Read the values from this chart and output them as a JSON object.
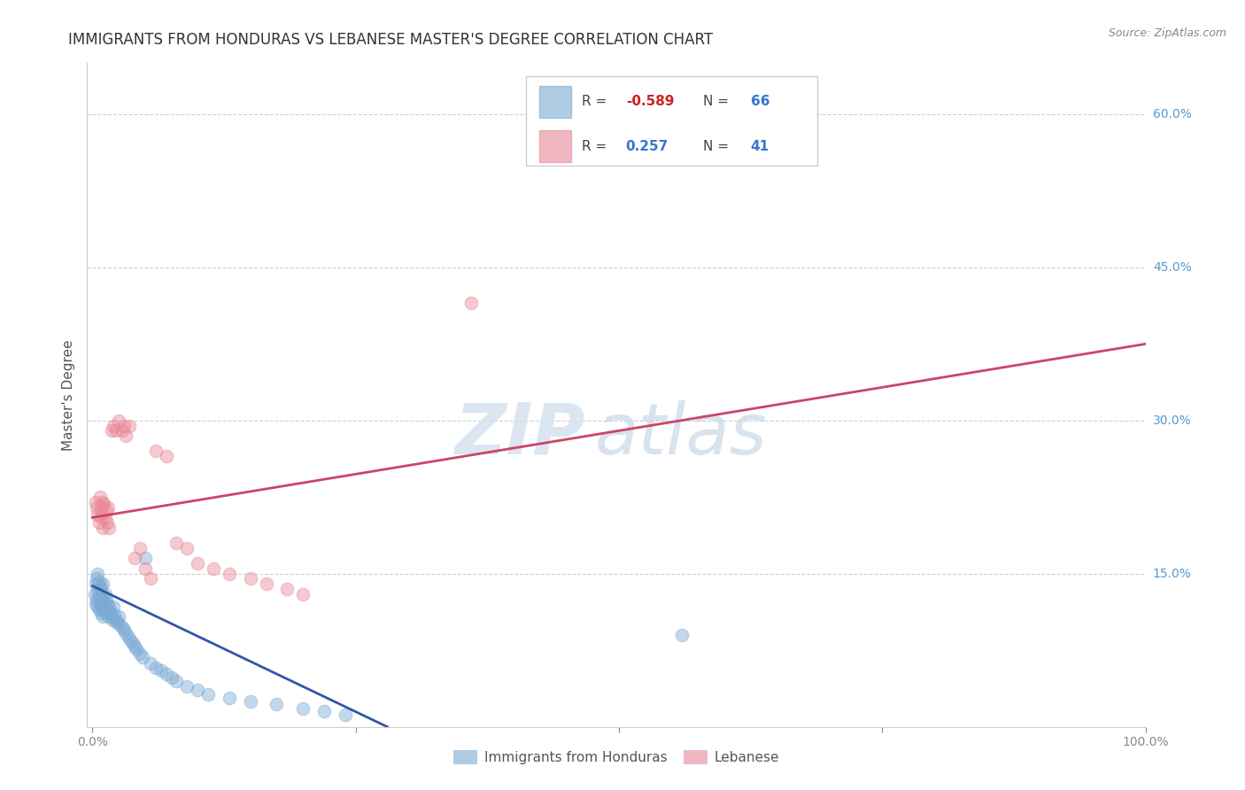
{
  "title": "IMMIGRANTS FROM HONDURAS VS LEBANESE MASTER'S DEGREE CORRELATION CHART",
  "source": "Source: ZipAtlas.com",
  "ylabel": "Master's Degree",
  "ytick_labels": [
    "15.0%",
    "30.0%",
    "45.0%",
    "60.0%"
  ],
  "ytick_values": [
    0.15,
    0.3,
    0.45,
    0.6
  ],
  "legend_entries": [
    {
      "label": "Immigrants from Honduras",
      "R": "-0.589",
      "N": "66",
      "color": "#a8c4e8"
    },
    {
      "label": "Lebanese",
      "R": "0.257",
      "N": "41",
      "color": "#f0a0b0"
    }
  ],
  "watermark_zip": "ZIP",
  "watermark_atlas": "atlas",
  "blue_scatter_x": [
    0.002,
    0.003,
    0.003,
    0.004,
    0.004,
    0.005,
    0.005,
    0.005,
    0.006,
    0.006,
    0.006,
    0.007,
    0.007,
    0.008,
    0.008,
    0.009,
    0.009,
    0.01,
    0.01,
    0.01,
    0.011,
    0.011,
    0.012,
    0.012,
    0.013,
    0.013,
    0.014,
    0.015,
    0.015,
    0.016,
    0.017,
    0.018,
    0.019,
    0.02,
    0.021,
    0.022,
    0.023,
    0.025,
    0.026,
    0.028,
    0.03,
    0.032,
    0.034,
    0.036,
    0.038,
    0.04,
    0.042,
    0.045,
    0.048,
    0.05,
    0.055,
    0.06,
    0.065,
    0.07,
    0.075,
    0.08,
    0.09,
    0.1,
    0.11,
    0.13,
    0.15,
    0.175,
    0.2,
    0.22,
    0.24,
    0.56
  ],
  "blue_scatter_y": [
    0.13,
    0.14,
    0.12,
    0.125,
    0.145,
    0.132,
    0.118,
    0.15,
    0.128,
    0.142,
    0.115,
    0.135,
    0.122,
    0.138,
    0.112,
    0.13,
    0.118,
    0.125,
    0.14,
    0.108,
    0.122,
    0.115,
    0.13,
    0.118,
    0.112,
    0.125,
    0.12,
    0.115,
    0.108,
    0.118,
    0.112,
    0.108,
    0.105,
    0.118,
    0.11,
    0.105,
    0.102,
    0.108,
    0.1,
    0.098,
    0.095,
    0.092,
    0.088,
    0.085,
    0.082,
    0.079,
    0.076,
    0.072,
    0.068,
    0.165,
    0.062,
    0.058,
    0.055,
    0.052,
    0.048,
    0.045,
    0.04,
    0.036,
    0.032,
    0.028,
    0.025,
    0.022,
    0.018,
    0.015,
    0.012,
    0.09
  ],
  "pink_scatter_x": [
    0.003,
    0.004,
    0.005,
    0.006,
    0.007,
    0.008,
    0.008,
    0.009,
    0.01,
    0.01,
    0.011,
    0.012,
    0.013,
    0.014,
    0.015,
    0.016,
    0.018,
    0.02,
    0.022,
    0.025,
    0.028,
    0.03,
    0.032,
    0.035,
    0.04,
    0.045,
    0.05,
    0.055,
    0.06,
    0.07,
    0.08,
    0.09,
    0.1,
    0.115,
    0.13,
    0.15,
    0.165,
    0.185,
    0.2,
    0.36,
    0.58
  ],
  "pink_scatter_y": [
    0.22,
    0.215,
    0.208,
    0.2,
    0.225,
    0.205,
    0.215,
    0.21,
    0.22,
    0.195,
    0.218,
    0.205,
    0.212,
    0.2,
    0.215,
    0.195,
    0.29,
    0.295,
    0.29,
    0.3,
    0.29,
    0.295,
    0.285,
    0.295,
    0.165,
    0.175,
    0.155,
    0.145,
    0.27,
    0.265,
    0.18,
    0.175,
    0.16,
    0.155,
    0.15,
    0.145,
    0.14,
    0.135,
    0.13,
    0.415,
    0.6
  ],
  "blue_line_x": [
    0.0,
    0.28
  ],
  "blue_line_y": [
    0.138,
    0.0
  ],
  "pink_line_x": [
    0.0,
    1.0
  ],
  "pink_line_y": [
    0.205,
    0.375
  ],
  "xlim": [
    -0.005,
    1.0
  ],
  "ylim": [
    0.0,
    0.65
  ],
  "scatter_size": 110,
  "scatter_alpha": 0.45,
  "blue_color": "#7baad4",
  "pink_color": "#e88898",
  "blue_line_color": "#3355aa",
  "pink_line_color": "#cc4466",
  "grid_color": "#d0d0d0",
  "bg_color": "#ffffff",
  "title_fontsize": 12,
  "axis_label_fontsize": 11,
  "tick_fontsize": 10,
  "source_fontsize": 9
}
